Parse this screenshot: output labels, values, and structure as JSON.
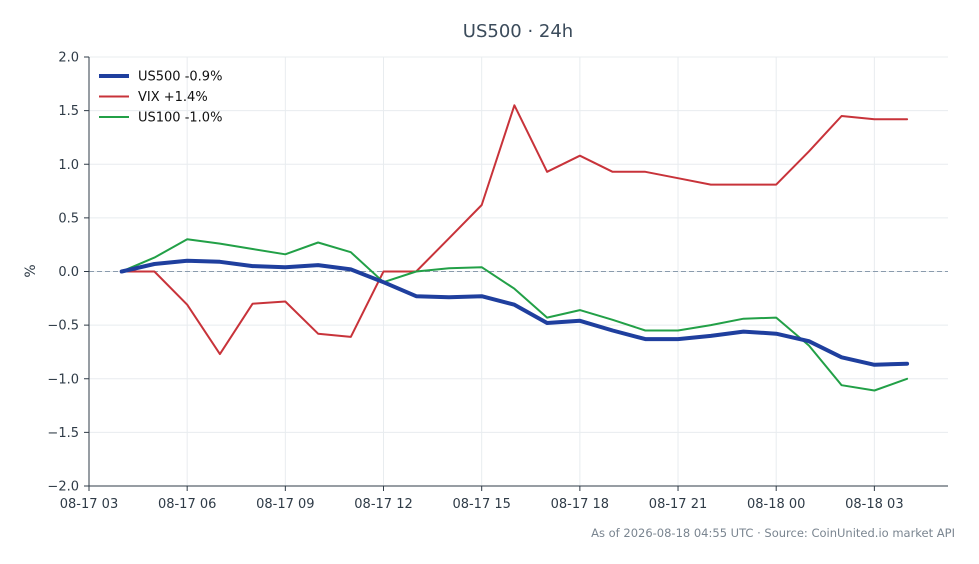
{
  "chart_data": {
    "type": "line",
    "title": "US500 · 24h",
    "xlabel": "",
    "ylabel": "%",
    "ylim": [
      -2.0,
      2.0
    ],
    "yticks": [
      -2.0,
      -1.5,
      -1.0,
      -0.5,
      0.0,
      0.5,
      1.0,
      1.5,
      2.0
    ],
    "ytick_labels": [
      "−2.0",
      "−1.5",
      "−1.0",
      "−0.5",
      "0.0",
      "0.5",
      "1.0",
      "1.5",
      "2.0"
    ],
    "xlim": [
      "08-17 03:00",
      "08-18 05:15"
    ],
    "xticks": [
      "08-17 03:00",
      "08-17 06:00",
      "08-17 09:00",
      "08-17 12:00",
      "08-17 15:00",
      "08-17 18:00",
      "08-17 21:00",
      "08-18 00:00",
      "08-18 03:00"
    ],
    "xtick_labels": [
      "08-17 03",
      "08-17 06",
      "08-17 09",
      "08-17 12",
      "08-17 15",
      "08-17 18",
      "08-17 21",
      "08-18 00",
      "08-18 03"
    ],
    "x": [
      "08-17 04:00",
      "08-17 05:00",
      "08-17 06:00",
      "08-17 07:00",
      "08-17 08:00",
      "08-17 09:00",
      "08-17 10:00",
      "08-17 11:00",
      "08-17 12:00",
      "08-17 13:00",
      "08-17 14:00",
      "08-17 15:00",
      "08-17 16:00",
      "08-17 17:00",
      "08-17 18:00",
      "08-17 19:00",
      "08-17 20:00",
      "08-17 21:00",
      "08-17 22:00",
      "08-17 23:00",
      "08-18 00:00",
      "08-18 01:00",
      "08-18 02:00",
      "08-18 03:00",
      "08-18 04:00"
    ],
    "series": [
      {
        "name": "US500 -0.9%",
        "color": "#1f3f9e",
        "width": 4,
        "values": [
          0.0,
          0.07,
          0.1,
          0.09,
          0.05,
          0.04,
          0.06,
          0.02,
          -0.1,
          -0.23,
          -0.24,
          -0.23,
          -0.31,
          -0.48,
          -0.46,
          -0.55,
          -0.63,
          -0.63,
          -0.6,
          -0.56,
          -0.58,
          -0.65,
          -0.8,
          -0.87,
          -0.86
        ]
      },
      {
        "name": "VIX +1.4%",
        "color": "#c8333a",
        "width": 2,
        "values": [
          0.0,
          0.0,
          -0.31,
          -0.77,
          -0.3,
          -0.28,
          -0.58,
          -0.61,
          0.0,
          0.0,
          0.31,
          0.62,
          1.55,
          0.93,
          1.08,
          0.93,
          0.93,
          0.87,
          0.81,
          0.81,
          0.81,
          1.12,
          1.45,
          1.42,
          1.42
        ]
      },
      {
        "name": "US100 -1.0%",
        "color": "#22a047",
        "width": 2,
        "values": [
          0.0,
          0.13,
          0.3,
          0.26,
          0.21,
          0.16,
          0.27,
          0.18,
          -0.1,
          0.0,
          0.03,
          0.04,
          -0.16,
          -0.43,
          -0.36,
          -0.45,
          -0.55,
          -0.55,
          -0.5,
          -0.44,
          -0.43,
          -0.69,
          -1.06,
          -1.11,
          -1.0
        ]
      }
    ],
    "baseline": {
      "y": 0.0,
      "style": "dashed",
      "color": "#8a9bad"
    },
    "grid": true,
    "legend_position": "top-left"
  },
  "footer": {
    "source": "As of 2026-08-18 04:55 UTC · Source: CoinUnited.io market API"
  }
}
